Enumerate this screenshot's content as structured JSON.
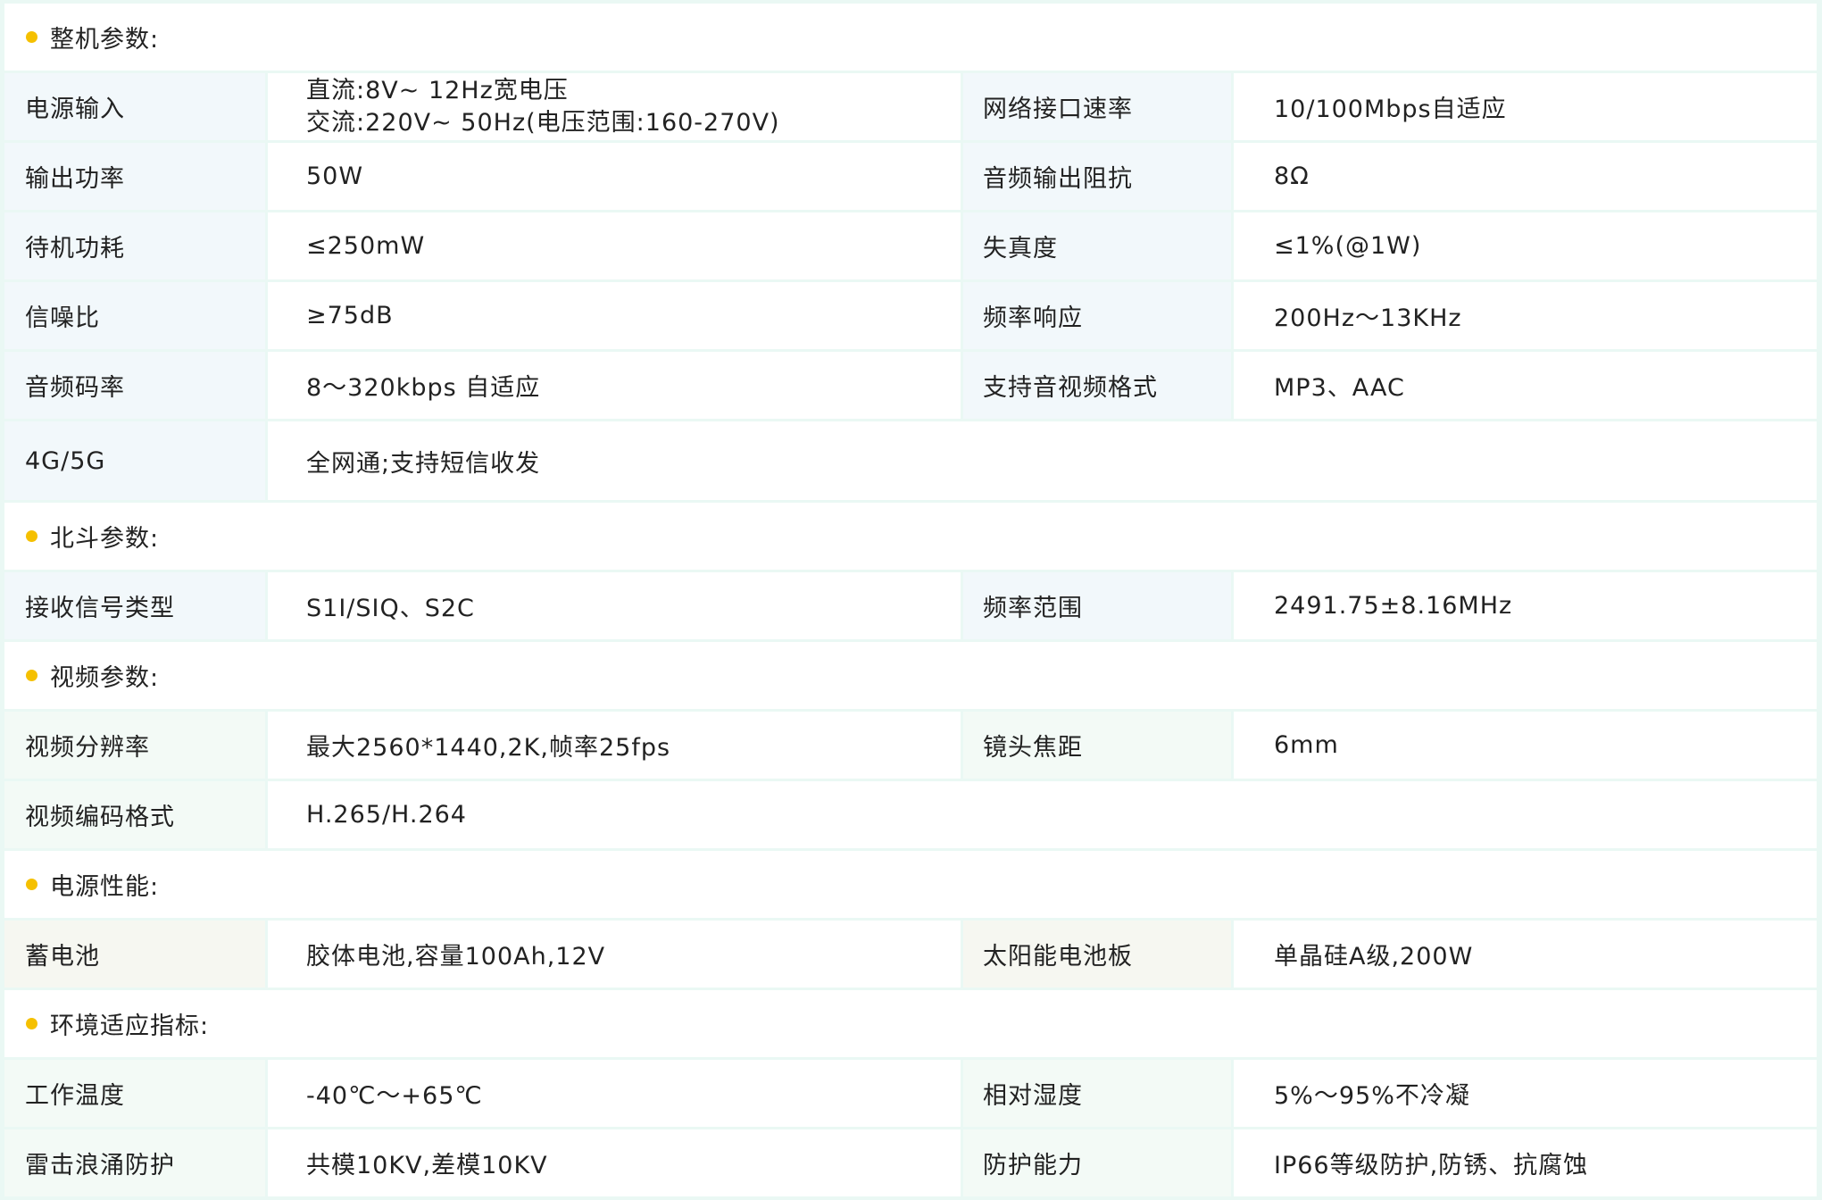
{
  "accent_color": "#f5c000",
  "sections": [
    {
      "title": "整机参数:",
      "rows": [
        {
          "l1": "电源输入",
          "v1": [
            "直流:8V~ 12Hz宽电压",
            "交流:220V~ 50Hz(电压范围:160-270V)"
          ],
          "l2": "网络接口速率",
          "v2": "10/100Mbps自适应"
        },
        {
          "l1": "输出功率",
          "v1": [
            "50W"
          ],
          "l2": "音频输出阻抗",
          "v2": "8Ω"
        },
        {
          "l1": "待机功耗",
          "v1": [
            "≤250mW"
          ],
          "l2": "失真度",
          "v2": "≤1%(@1W)"
        },
        {
          "l1": "信噪比",
          "v1": [
            "≥75dB"
          ],
          "l2": "频率响应",
          "v2": "200Hz～13KHz"
        },
        {
          "l1": "音频码率",
          "v1": [
            "8～320kbps 自适应"
          ],
          "l2": "支持音视频格式",
          "v2": "MP3、AAC"
        },
        {
          "l1": "4G/5G",
          "v1": [
            "全网通;支持短信收发"
          ],
          "full": true,
          "tall": true
        }
      ]
    },
    {
      "title": "北斗参数:",
      "rows": [
        {
          "l1": "接收信号类型",
          "v1": [
            "S1I/SIQ、S2C"
          ],
          "l2": "频率范围",
          "v2": "2491.75±8.16MHz"
        }
      ]
    },
    {
      "title": "视频参数:",
      "rows": [
        {
          "l1": "视频分辨率",
          "v1": [
            "最大2560*1440,2K,帧率25fps"
          ],
          "l2": "镜头焦距",
          "v2": "6mm",
          "tint": "g"
        },
        {
          "l1": "视频编码格式",
          "v1": [
            "H.265/H.264"
          ],
          "full": true,
          "tint": "g"
        }
      ]
    },
    {
      "title": "电源性能:",
      "rows": [
        {
          "l1": "蓄电池",
          "v1": [
            "胶体电池,容量100Ah,12V"
          ],
          "l2": "太阳能电池板",
          "v2": "单晶硅A级,200W",
          "tint": "y"
        }
      ]
    },
    {
      "title": "环境适应指标:",
      "rows": [
        {
          "l1": "工作温度",
          "v1": [
            "-40℃～+65℃"
          ],
          "l2": "相对湿度",
          "v2": "5%～95%不冷凝",
          "tint": "g"
        },
        {
          "l1": "雷击浪涌防护",
          "v1": [
            "共模10KV,差模10KV"
          ],
          "l2": "防护能力",
          "v2": "IP66等级防护,防锈、抗腐蚀",
          "tint": "g"
        }
      ]
    }
  ]
}
